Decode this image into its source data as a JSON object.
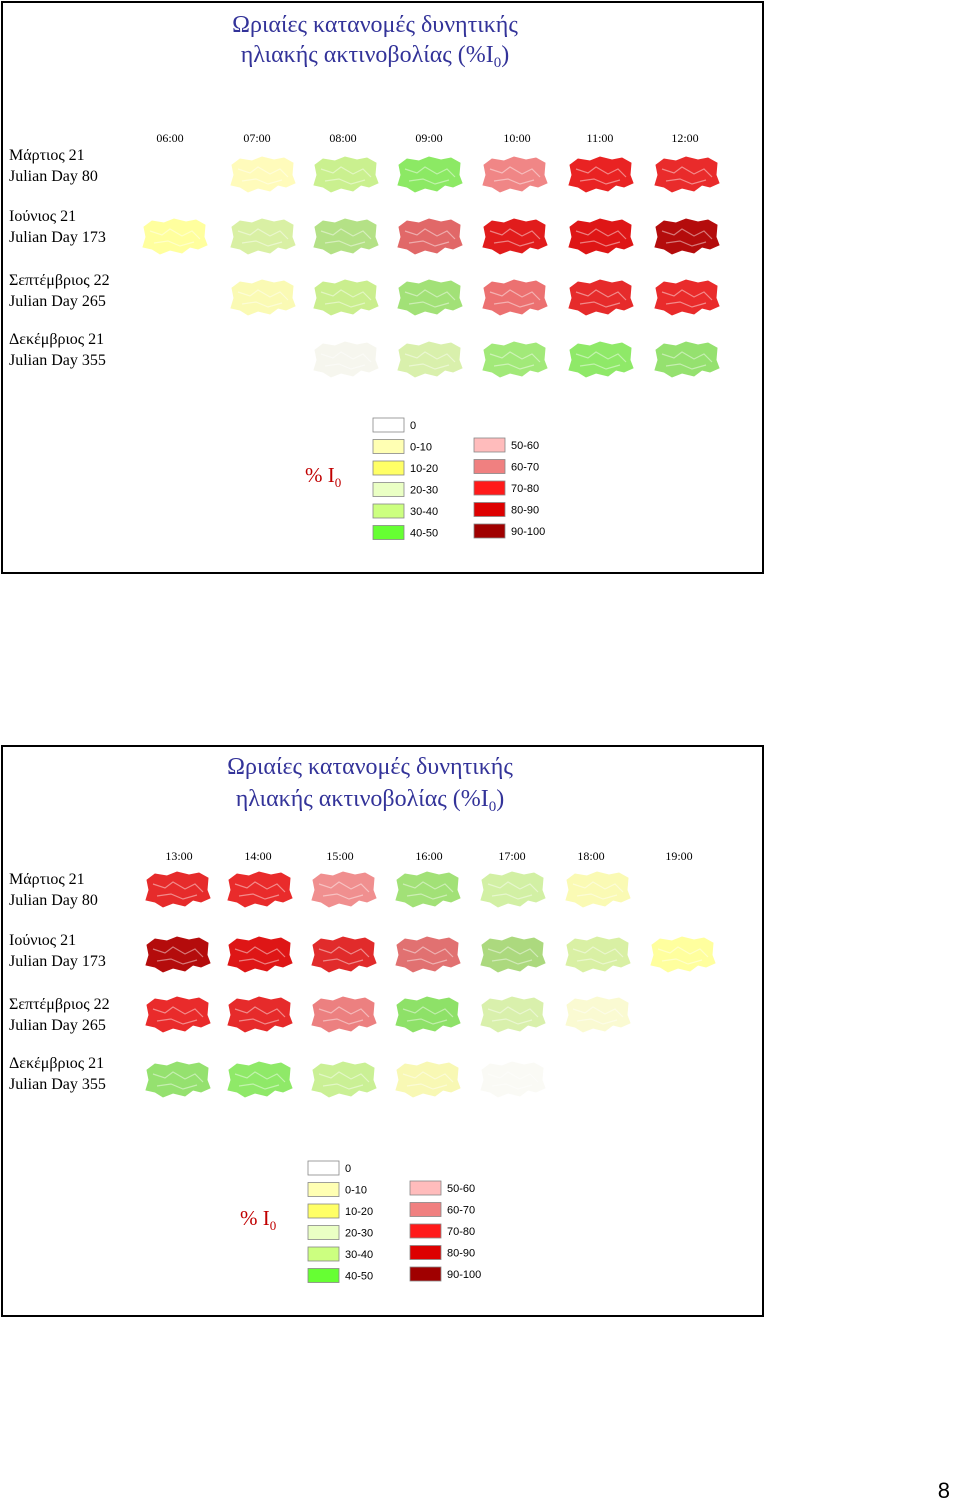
{
  "slides": [
    {
      "title": {
        "line1": "Ωριαίες κατανομές δυνητικής",
        "line2": "ηλιακής ακτινοβολίας (%I",
        "sub": "0",
        "close": ")"
      },
      "times": [
        "06:00",
        "07:00",
        "08:00",
        "09:00",
        "10:00",
        "11:00",
        "12:00"
      ],
      "rows": [
        {
          "month": "Μάρτιος 21",
          "day": "Julian Day 80"
        },
        {
          "month": "Ιούνιος 21",
          "day": "Julian Day 173"
        },
        {
          "month": "Σεπτέμβριος 22",
          "day": "Julian Day 265"
        },
        {
          "month": "Δεκέμβριος 21",
          "day": "Julian Day 355"
        }
      ],
      "legend": {
        "symbol": "% I",
        "sub": "0",
        "items": [
          {
            "label": "0",
            "color": "#ffffff"
          },
          {
            "label": "0-10",
            "color": "#ffffb3"
          },
          {
            "label": "10-20",
            "color": "#ffff66"
          },
          {
            "label": "20-30",
            "color": "#eaffc4"
          },
          {
            "label": "30-40",
            "color": "#ccff80"
          },
          {
            "label": "40-50",
            "color": "#66ff33"
          },
          {
            "label": "50-60",
            "color": "#ffbcbc"
          },
          {
            "label": "60-70",
            "color": "#f08080"
          },
          {
            "label": "70-80",
            "color": "#ff1a1a"
          },
          {
            "label": "80-90",
            "color": "#dd0000"
          },
          {
            "label": "90-100",
            "color": "#a00000"
          }
        ]
      }
    },
    {
      "title": {
        "line1": "Ωριαίες κατανομές δυνητικής",
        "line2": "ηλιακής ακτινοβολίας (%I",
        "sub": "0",
        "close": ")"
      },
      "times": [
        "13:00",
        "14:00",
        "15:00",
        "16:00",
        "17:00",
        "18:00",
        "19:00"
      ],
      "rows": [
        {
          "month": "Μάρτιος 21",
          "day": "Julian Day 80"
        },
        {
          "month": "Ιούνιος 21",
          "day": "Julian Day 173"
        },
        {
          "month": "Σεπτέμβριος 22",
          "day": "Julian Day 265"
        },
        {
          "month": "Δεκέμβριος 21",
          "day": "Julian Day 355"
        }
      ],
      "legend": {
        "symbol": "% I",
        "sub": "0",
        "items": [
          {
            "label": "0",
            "color": "#ffffff"
          },
          {
            "label": "0-10",
            "color": "#ffffb3"
          },
          {
            "label": "10-20",
            "color": "#ffff66"
          },
          {
            "label": "20-30",
            "color": "#eaffc4"
          },
          {
            "label": "30-40",
            "color": "#ccff80"
          },
          {
            "label": "40-50",
            "color": "#66ff33"
          },
          {
            "label": "50-60",
            "color": "#ffbcbc"
          },
          {
            "label": "60-70",
            "color": "#f08080"
          },
          {
            "label": "70-80",
            "color": "#ff1a1a"
          },
          {
            "label": "80-90",
            "color": "#dd0000"
          },
          {
            "label": "90-100",
            "color": "#a00000"
          }
        ]
      }
    }
  ],
  "page_number": "8"
}
